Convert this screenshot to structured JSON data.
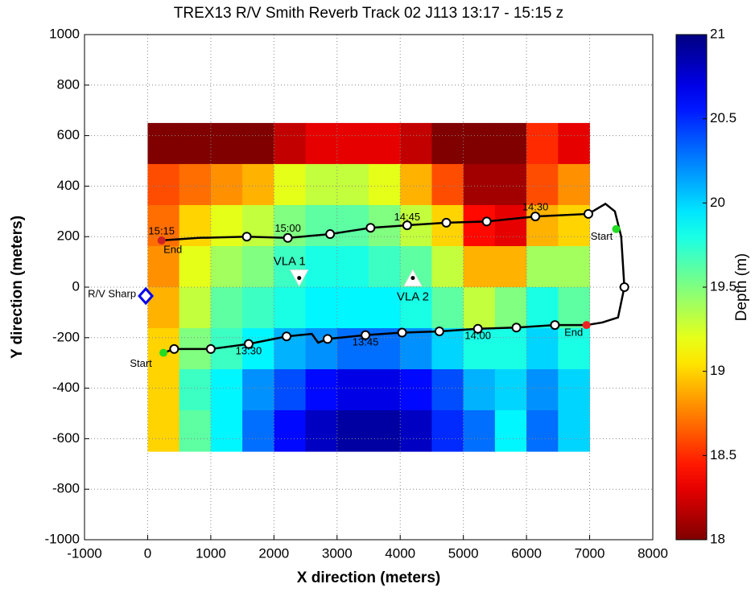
{
  "chart_data": {
    "type": "heatmap",
    "title": "TREX13  R/V Smith  Reverb Track 02  J113 13:17 - 15:15 z",
    "x_label": "X direction (meters)",
    "y_label": "Y direction (meters)",
    "colorbar_label": "Depth (m)",
    "colormap": "jet_r",
    "grid": true,
    "xlim": [
      -1000,
      8000
    ],
    "ylim": [
      -1000,
      1000
    ],
    "xticks": [
      -1000,
      0,
      1000,
      2000,
      3000,
      4000,
      5000,
      6000,
      7000,
      8000
    ],
    "yticks": [
      -1000,
      -800,
      -600,
      -400,
      -200,
      0,
      200,
      400,
      600,
      800,
      1000
    ],
    "clim": [
      18,
      21
    ],
    "cticks": [
      18,
      18.5,
      19,
      19.5,
      20,
      20.5,
      21
    ],
    "heatmap": {
      "x": [
        0,
        500,
        1000,
        1500,
        2000,
        2500,
        3000,
        3500,
        4000,
        4500,
        5000,
        5500,
        6000,
        6500,
        7000
      ],
      "y": [
        650,
        487.5,
        325,
        162.5,
        0,
        -162.5,
        -325,
        -487.5,
        -650
      ],
      "z": [
        [
          18.0,
          18.0,
          18.0,
          18.0,
          18.2,
          18.3,
          18.3,
          18.3,
          18.2,
          18.0,
          18.0,
          18.0,
          18.5,
          18.3
        ],
        [
          18.6,
          18.7,
          18.8,
          18.9,
          19.2,
          19.3,
          19.3,
          19.2,
          18.9,
          18.6,
          18.1,
          18.1,
          18.6,
          18.8
        ],
        [
          18.7,
          19.0,
          19.2,
          19.3,
          19.5,
          19.6,
          19.6,
          19.5,
          19.3,
          19.0,
          18.4,
          18.3,
          18.9,
          19.0
        ],
        [
          18.8,
          19.2,
          19.4,
          19.5,
          19.7,
          19.8,
          19.8,
          19.7,
          19.6,
          19.3,
          18.9,
          18.9,
          19.4,
          19.4
        ],
        [
          18.9,
          19.3,
          19.6,
          19.7,
          19.8,
          19.9,
          19.9,
          19.9,
          19.8,
          19.6,
          19.3,
          19.5,
          19.8,
          19.6
        ],
        [
          19.0,
          19.5,
          19.7,
          19.9,
          20.1,
          20.2,
          20.3,
          20.3,
          20.2,
          20.0,
          19.8,
          19.8,
          20.0,
          19.8
        ],
        [
          19.0,
          19.7,
          19.9,
          20.2,
          20.4,
          20.6,
          20.7,
          20.7,
          20.6,
          20.4,
          20.1,
          20.0,
          20.2,
          20.0
        ],
        [
          19.0,
          19.6,
          19.9,
          20.3,
          20.6,
          20.8,
          20.9,
          20.9,
          20.8,
          20.5,
          20.3,
          19.9,
          20.3,
          20.0
        ]
      ]
    },
    "track": {
      "color": "#000000",
      "x": [
        250,
        420,
        1000,
        1600,
        2200,
        2600,
        2700,
        2850,
        3450,
        4030,
        4620,
        5230,
        5840,
        6450,
        6950,
        7200,
        7450,
        7550,
        7500,
        7400,
        7250,
        6980,
        6140,
        5370,
        4730,
        4110,
        3530,
        2890,
        2220,
        1570,
        800,
        220
      ],
      "y": [
        -260,
        -245,
        -245,
        -225,
        -195,
        -185,
        -220,
        -205,
        -190,
        -180,
        -175,
        -165,
        -160,
        -150,
        -150,
        -140,
        -120,
        0,
        200,
        300,
        330,
        290,
        280,
        260,
        255,
        245,
        235,
        210,
        195,
        200,
        195,
        185
      ]
    },
    "markers": {
      "x": [
        420,
        1000,
        1600,
        2200,
        2850,
        3450,
        4030,
        4620,
        5230,
        5840,
        6450,
        7550,
        6980,
        6140,
        5370,
        4730,
        4110,
        3530,
        2890,
        2220,
        1570
      ],
      "y": [
        -245,
        -245,
        -225,
        -195,
        -205,
        -190,
        -180,
        -175,
        -165,
        -160,
        -150,
        0,
        290,
        280,
        260,
        255,
        245,
        235,
        210,
        195,
        200
      ]
    },
    "endpoints": [
      {
        "label": "Start",
        "x": 250,
        "y": -260,
        "color": "#22dd22"
      },
      {
        "label": "End",
        "x": 6950,
        "y": -150,
        "color": "#ee2222"
      },
      {
        "label": "Start",
        "x": 7420,
        "y": 230,
        "color": "#22dd22"
      },
      {
        "label": "End",
        "x": 220,
        "y": 185,
        "color": "#cc2222"
      }
    ],
    "time_labels": [
      {
        "text": "13:30",
        "x": 1600,
        "y": -255
      },
      {
        "text": "13:45",
        "x": 3450,
        "y": -220
      },
      {
        "text": "14:00",
        "x": 5230,
        "y": -195
      },
      {
        "text": "14:30",
        "x": 6140,
        "y": 315
      },
      {
        "text": "14:45",
        "x": 4110,
        "y": 275
      },
      {
        "text": "15:00",
        "x": 2220,
        "y": 230
      },
      {
        "text": "15:15",
        "x": 220,
        "y": 220
      }
    ],
    "vla": [
      {
        "label": "VLA 1",
        "x": 2400,
        "y": 30,
        "pointing": "down"
      },
      {
        "label": "VLA 2",
        "x": 4200,
        "y": 30,
        "pointing": "up"
      }
    ],
    "ship": {
      "label": "R/V Sharp",
      "x": -30,
      "y": -35,
      "color": "#0000ee"
    }
  }
}
